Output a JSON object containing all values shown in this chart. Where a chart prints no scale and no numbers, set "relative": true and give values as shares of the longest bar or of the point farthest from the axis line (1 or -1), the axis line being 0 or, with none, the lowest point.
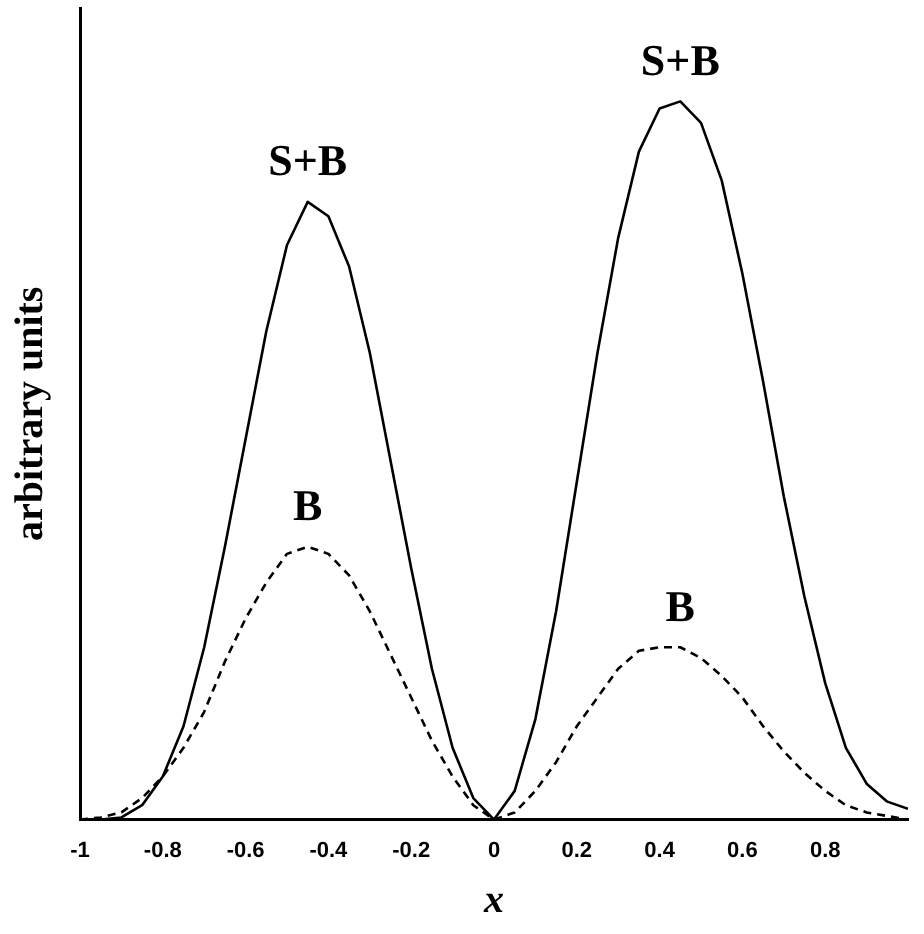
{
  "chart_data": {
    "type": "line",
    "relative": true,
    "xlabel": "x",
    "ylabel": "arbitrary units",
    "x": [
      -1,
      -0.95,
      -0.9,
      -0.85,
      -0.8,
      -0.75,
      -0.7,
      -0.65,
      -0.6,
      -0.55,
      -0.5,
      -0.45,
      -0.4,
      -0.35,
      -0.3,
      -0.25,
      -0.2,
      -0.15,
      -0.1,
      -0.05,
      0,
      0.05,
      0.1,
      0.15,
      0.2,
      0.25,
      0.3,
      0.35,
      0.4,
      0.45,
      0.5,
      0.55,
      0.6,
      0.65,
      0.7,
      0.75,
      0.8,
      0.85,
      0.9,
      0.95,
      1
    ],
    "xlim": [
      -1,
      1
    ],
    "xticks": [
      -1,
      -0.8,
      -0.6,
      -0.4,
      -0.2,
      0,
      0.2,
      0.4,
      0.6,
      0.8
    ],
    "series": [
      {
        "name": "S+B",
        "color": "#000000",
        "line_style": "solid",
        "values": [
          0,
          0,
          0.003,
          0.02,
          0.06,
          0.13,
          0.24,
          0.38,
          0.53,
          0.68,
          0.8,
          0.86,
          0.84,
          0.77,
          0.65,
          0.5,
          0.35,
          0.21,
          0.1,
          0.03,
          0,
          0.04,
          0.14,
          0.29,
          0.47,
          0.65,
          0.81,
          0.93,
          0.99,
          1,
          0.97,
          0.89,
          0.76,
          0.61,
          0.45,
          0.31,
          0.19,
          0.1,
          0.05,
          0.025,
          0.015
        ]
      },
      {
        "name": "B",
        "color": "#000000",
        "line_style": "dashed",
        "values": [
          0,
          0.003,
          0.01,
          0.03,
          0.06,
          0.1,
          0.15,
          0.22,
          0.28,
          0.33,
          0.37,
          0.38,
          0.37,
          0.34,
          0.29,
          0.23,
          0.17,
          0.11,
          0.06,
          0.02,
          0,
          0.01,
          0.04,
          0.08,
          0.13,
          0.17,
          0.21,
          0.235,
          0.24,
          0.24,
          0.225,
          0.2,
          0.17,
          0.13,
          0.095,
          0.065,
          0.04,
          0.02,
          0.01,
          0.005,
          0
        ]
      }
    ],
    "marker": "none",
    "legend": false,
    "grid": false
  }
}
